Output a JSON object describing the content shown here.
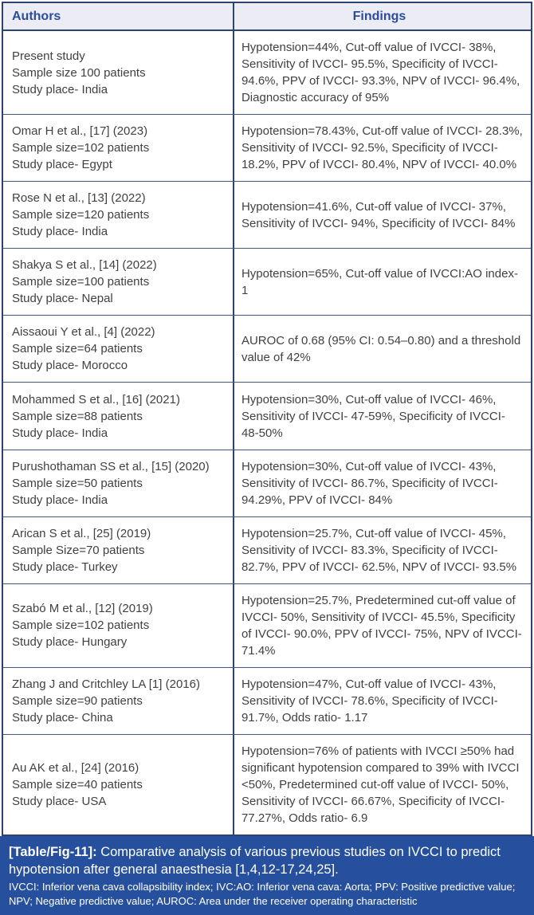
{
  "table": {
    "columns": [
      {
        "label": "Authors"
      },
      {
        "label": "Findings"
      }
    ],
    "rows": [
      {
        "authors": [
          "Present study",
          "Sample size 100 patients",
          "Study place- India"
        ],
        "findings": "Hypotension=44%, Cut-off value of IVCCI- 38%, Sensitivity of IVCCI- 95.5%, Specificity of IVCCI- 94.6%, PPV of IVCCI- 93.3%, NPV of IVCCI- 96.4%, Diagnostic accuracy of 95%"
      },
      {
        "authors": [
          "Omar H et al., [17] (2023)",
          "Sample size=102 patients",
          "Study place- Egypt"
        ],
        "findings": "Hypotension=78.43%, Cut-off value of IVCCI- 28.3%, Sensitivity of IVCCI- 92.5%, Specificity of IVCCI- 18.2%, PPV of IVCCI- 80.4%, NPV of IVCCI- 40.0%"
      },
      {
        "authors": [
          "Rose N et al., [13] (2022)",
          "Sample size=120 patients",
          "Study place- India"
        ],
        "findings": "Hypotension=41.6%, Cut-off value of IVCCI- 37%, Sensitivity of IVCCI- 94%, Specificity of IVCCI- 84%"
      },
      {
        "authors": [
          "Shakya S et al., [14] (2022)",
          "Sample size=100 patients",
          "Study place- Nepal"
        ],
        "findings": "Hypotension=65%, Cut-off value of IVCCI:AO index-1"
      },
      {
        "authors": [
          "Aissaoui Y et al., [4] (2022)",
          "Sample size=64 patients",
          "Study place- Morocco"
        ],
        "findings": "AUROC of 0.68 (95% CI: 0.54–0.80) and a threshold value of 42%"
      },
      {
        "authors": [
          "Mohammed S et al., [16] (2021)",
          "Sample size=88 patients",
          "Study place- India"
        ],
        "findings": "Hypotension=30%, Cut-off value of IVCCI- 46%, Sensitivity of IVCCI- 47-59%, Specificity of IVCCI- 48-50%"
      },
      {
        "authors": [
          "Purushothaman SS et al., [15] (2020)",
          "Sample size=50 patients",
          "Study place- India"
        ],
        "findings": "Hypotension=30%, Cut-off value of IVCCI- 43%, Sensitivity of IVCCI- 86.7%, Specificity of IVCCI- 94.29%, PPV of IVCCI- 84%"
      },
      {
        "authors": [
          "Arican S et al., [25] (2019)",
          "Sample Size=70 patients",
          "Study place- Turkey"
        ],
        "findings": "Hypotension=25.7%, Cut-off value of IVCCI- 45%, Sensitivity of IVCCI- 83.3%, Specificity of IVCCI- 82.7%, PPV of IVCCI- 62.5%, NPV of IVCCI- 93.5%"
      },
      {
        "authors": [
          "Szabó M et al., [12] (2019)",
          "Sample size=102 patients",
          "Study place- Hungary"
        ],
        "findings": "Hypotension=25.7%, Predetermined cut-off value of IVCCI- 50%, Sensitivity of IVCCI- 45.5%, Specificity of IVCCI- 90.0%, PPV of IVCCI- 75%, NPV of IVCCI- 71.4%"
      },
      {
        "authors": [
          "Zhang J and Critchley LA [1] (2016)",
          "Sample size=90 patients",
          "Study place- China"
        ],
        "findings": "Hypotension=47%, Cut-off value of IVCCI- 43%, Sensitivity of IVCCI- 78.6%, Specificity of IVCCI- 91.7%, Odds ratio- 1.17"
      },
      {
        "authors": [
          "Au AK et al., [24] (2016)",
          "Sample size=40 patients",
          "Study place- USA"
        ],
        "findings": "Hypotension=76% of patients with IVCCI ≥50% had significant hypotension compared to 39% with IVCCI <50%, Predetermined cut-off value of IVCCI- 50%, Sensitivity of IVCCI- 66.67%, Specificity of IVCCI- 77.27%, Odds ratio- 6.9"
      }
    ]
  },
  "caption": {
    "label": "[Table/Fig-11]:",
    "text": "Comparative analysis of various previous studies on IVCCI to predict hypotension after general anaesthesia [1,4,12-17,24,25].",
    "footnote": "IVCCI: Inferior vena cava collapsibility index; IVC:AO: Inferior vena cava: Aorta; PPV: Positive predictive value; NPV; Negative predictive value; AUROC: Area under the receiver operating characteristic"
  },
  "colors": {
    "header_background": "#ecedf4",
    "header_text": "#2b4c9d",
    "border": "#2e4470",
    "row_divider": "#44597e",
    "body_text": "#414141",
    "caption_background": "#26509d",
    "caption_text": "#ffffff"
  }
}
